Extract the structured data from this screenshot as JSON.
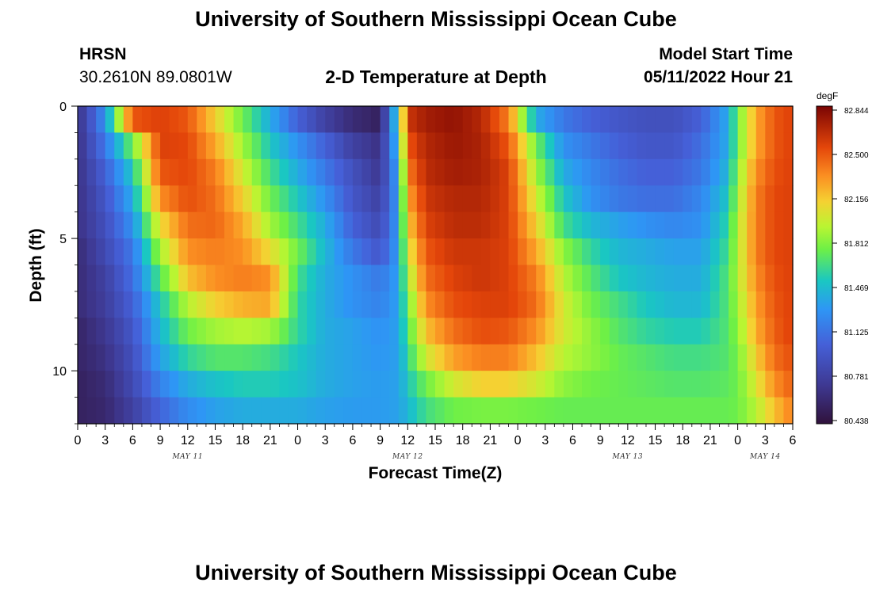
{
  "header": {
    "title": "University of Southern Mississippi Ocean Cube",
    "station": "HRSN",
    "coordinates": "30.2610N  89.0801W",
    "plot_title": "2-D Temperature at Depth",
    "model_label": "Model Start Time",
    "model_time": "05/11/2022 Hour 21"
  },
  "footer": {
    "title": "University of Southern Mississippi Ocean Cube"
  },
  "chart_data": {
    "type": "heatmap",
    "title": "2-D Temperature at Depth",
    "xlabel": "Forecast Time(Z)",
    "ylabel": "Depth (ft)",
    "x_hours_range": [
      0,
      78
    ],
    "x_tick_labels": [
      "0",
      "3",
      "6",
      "9",
      "12",
      "15",
      "18",
      "21",
      "0",
      "3",
      "6",
      "9",
      "12",
      "15",
      "18",
      "21",
      "0",
      "3",
      "6",
      "9",
      "12",
      "15",
      "18",
      "21",
      "0",
      "3",
      "6"
    ],
    "date_labels": [
      {
        "text": "MAY 11",
        "hour": 12
      },
      {
        "text": "MAY 12",
        "hour": 36
      },
      {
        "text": "MAY 13",
        "hour": 60
      },
      {
        "text": "MAY 14",
        "hour": 75
      }
    ],
    "y_range": [
      0,
      12
    ],
    "y_ticks": [
      0,
      5,
      10
    ],
    "depths": [
      0,
      1,
      2,
      3,
      4,
      5,
      6,
      7,
      8,
      9,
      10,
      11
    ],
    "colorbar": {
      "unit": "degF",
      "min": 80.438,
      "max": 82.844,
      "ticks": [
        "82.844",
        "82.500",
        "82.156",
        "81.812",
        "81.469",
        "81.125",
        "80.781",
        "80.438"
      ]
    },
    "temperature_profile": {
      "description": "normalized 0..1 temperature (0=80.438, 1=82.844) per depth row at key forecast hours",
      "hours": [
        0,
        3,
        6,
        9,
        12,
        15,
        18,
        21,
        24,
        27,
        30,
        33,
        35,
        36,
        38,
        41,
        44,
        47,
        50,
        53,
        56,
        59,
        62,
        65,
        68,
        71,
        72,
        74,
        76,
        78
      ],
      "rows": [
        [
          0.1,
          0.35,
          0.85,
          0.88,
          0.85,
          0.7,
          0.55,
          0.4,
          0.25,
          0.15,
          0.08,
          0.05,
          0.5,
          0.9,
          0.95,
          0.97,
          0.93,
          0.8,
          0.4,
          0.3,
          0.25,
          0.22,
          0.2,
          0.2,
          0.25,
          0.4,
          0.55,
          0.75,
          0.85,
          0.88
        ],
        [
          0.1,
          0.3,
          0.55,
          0.88,
          0.87,
          0.75,
          0.6,
          0.45,
          0.35,
          0.25,
          0.15,
          0.1,
          0.45,
          0.85,
          0.93,
          0.96,
          0.94,
          0.85,
          0.55,
          0.35,
          0.3,
          0.25,
          0.22,
          0.22,
          0.28,
          0.4,
          0.55,
          0.75,
          0.85,
          0.88
        ],
        [
          0.1,
          0.25,
          0.45,
          0.85,
          0.87,
          0.8,
          0.65,
          0.5,
          0.4,
          0.3,
          0.2,
          0.12,
          0.4,
          0.8,
          0.92,
          0.95,
          0.94,
          0.88,
          0.6,
          0.4,
          0.33,
          0.28,
          0.25,
          0.25,
          0.3,
          0.42,
          0.58,
          0.78,
          0.86,
          0.88
        ],
        [
          0.1,
          0.22,
          0.4,
          0.78,
          0.86,
          0.82,
          0.7,
          0.55,
          0.45,
          0.35,
          0.22,
          0.15,
          0.38,
          0.75,
          0.9,
          0.93,
          0.93,
          0.88,
          0.65,
          0.45,
          0.35,
          0.3,
          0.28,
          0.28,
          0.33,
          0.45,
          0.6,
          0.8,
          0.87,
          0.88
        ],
        [
          0.1,
          0.2,
          0.35,
          0.68,
          0.82,
          0.83,
          0.75,
          0.6,
          0.5,
          0.4,
          0.25,
          0.18,
          0.38,
          0.7,
          0.88,
          0.92,
          0.92,
          0.88,
          0.7,
          0.5,
          0.42,
          0.38,
          0.35,
          0.33,
          0.35,
          0.48,
          0.62,
          0.8,
          0.87,
          0.88
        ],
        [
          0.08,
          0.18,
          0.3,
          0.6,
          0.78,
          0.8,
          0.78,
          0.68,
          0.55,
          0.42,
          0.3,
          0.22,
          0.38,
          0.65,
          0.85,
          0.9,
          0.9,
          0.88,
          0.75,
          0.58,
          0.48,
          0.42,
          0.4,
          0.38,
          0.38,
          0.5,
          0.62,
          0.8,
          0.87,
          0.88
        ],
        [
          0.08,
          0.15,
          0.28,
          0.52,
          0.72,
          0.78,
          0.8,
          0.78,
          0.5,
          0.4,
          0.35,
          0.3,
          0.38,
          0.6,
          0.82,
          0.88,
          0.9,
          0.88,
          0.8,
          0.62,
          0.52,
          0.45,
          0.42,
          0.4,
          0.4,
          0.52,
          0.62,
          0.78,
          0.86,
          0.88
        ],
        [
          0.08,
          0.14,
          0.25,
          0.45,
          0.62,
          0.7,
          0.74,
          0.75,
          0.48,
          0.4,
          0.35,
          0.32,
          0.38,
          0.55,
          0.78,
          0.86,
          0.88,
          0.88,
          0.82,
          0.65,
          0.55,
          0.5,
          0.45,
          0.42,
          0.42,
          0.52,
          0.6,
          0.76,
          0.85,
          0.88
        ],
        [
          0.06,
          0.12,
          0.22,
          0.42,
          0.55,
          0.6,
          0.62,
          0.6,
          0.48,
          0.4,
          0.38,
          0.35,
          0.38,
          0.52,
          0.72,
          0.82,
          0.86,
          0.85,
          0.78,
          0.65,
          0.58,
          0.52,
          0.48,
          0.46,
          0.46,
          0.52,
          0.58,
          0.74,
          0.84,
          0.88
        ],
        [
          0.06,
          0.1,
          0.2,
          0.38,
          0.48,
          0.52,
          0.52,
          0.5,
          0.45,
          0.4,
          0.38,
          0.36,
          0.38,
          0.48,
          0.65,
          0.76,
          0.8,
          0.8,
          0.72,
          0.62,
          0.58,
          0.54,
          0.52,
          0.5,
          0.5,
          0.52,
          0.56,
          0.7,
          0.82,
          0.86
        ],
        [
          0.05,
          0.08,
          0.18,
          0.32,
          0.4,
          0.44,
          0.46,
          0.46,
          0.44,
          0.4,
          0.38,
          0.37,
          0.38,
          0.45,
          0.55,
          0.65,
          0.7,
          0.7,
          0.65,
          0.58,
          0.55,
          0.54,
          0.53,
          0.52,
          0.52,
          0.53,
          0.55,
          0.66,
          0.78,
          0.84
        ],
        [
          0.05,
          0.07,
          0.15,
          0.26,
          0.34,
          0.38,
          0.4,
          0.4,
          0.4,
          0.38,
          0.37,
          0.37,
          0.38,
          0.42,
          0.5,
          0.55,
          0.56,
          0.56,
          0.55,
          0.54,
          0.54,
          0.54,
          0.54,
          0.54,
          0.54,
          0.54,
          0.55,
          0.62,
          0.72,
          0.8
        ]
      ]
    }
  }
}
